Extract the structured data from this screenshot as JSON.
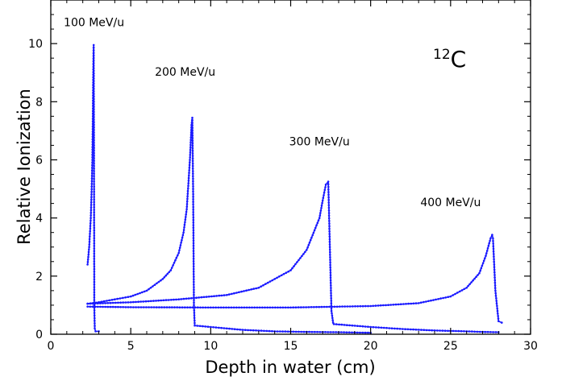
{
  "chart_data": {
    "type": "line",
    "title": "",
    "xlabel": "Depth in water (cm)",
    "ylabel": "Relative Ionization",
    "xlim": [
      0,
      30
    ],
    "ylim": [
      0,
      11.5
    ],
    "xticks": [
      0,
      5,
      10,
      15,
      20,
      25,
      30
    ],
    "yticks": [
      0,
      2,
      4,
      6,
      8,
      10
    ],
    "x_tick_labels": [
      "0",
      "5",
      "10",
      "15",
      "20",
      "25",
      "30"
    ],
    "y_tick_labels": [
      "0",
      "2",
      "4",
      "6",
      "8",
      "10"
    ],
    "grid": false,
    "color": "#1a1aff",
    "isotope": {
      "mass_number": "12",
      "symbol": "C"
    },
    "series": [
      {
        "name": "100 MeV/u",
        "x": [
          2.3,
          2.4,
          2.5,
          2.55,
          2.6,
          2.63,
          2.66,
          2.68,
          2.7,
          2.72,
          2.75,
          2.8,
          3.0
        ],
        "y": [
          2.4,
          3.0,
          4.0,
          4.9,
          6.0,
          7.5,
          9.2,
          9.95,
          6.5,
          1.0,
          0.2,
          0.1,
          0.1
        ]
      },
      {
        "name": "200 MeV/u",
        "x": [
          2.3,
          3,
          4,
          5,
          6,
          7,
          7.5,
          8.0,
          8.3,
          8.5,
          8.7,
          8.8,
          8.85,
          8.9,
          8.95,
          9.0,
          10,
          12,
          14,
          16,
          18,
          20
        ],
        "y": [
          1.05,
          1.1,
          1.2,
          1.3,
          1.5,
          1.9,
          2.2,
          2.8,
          3.5,
          4.3,
          6.0,
          7.2,
          7.45,
          5.0,
          1.0,
          0.3,
          0.25,
          0.15,
          0.1,
          0.08,
          0.07,
          0.05
        ]
      },
      {
        "name": "300 MeV/u",
        "x": [
          2.3,
          5,
          8,
          11,
          13,
          15,
          16,
          16.8,
          17.0,
          17.2,
          17.35,
          17.45,
          17.55,
          17.65,
          17.7,
          20,
          22,
          24,
          26,
          27,
          28
        ],
        "y": [
          1.05,
          1.1,
          1.2,
          1.35,
          1.6,
          2.2,
          2.9,
          4.0,
          4.6,
          5.15,
          5.25,
          3.0,
          0.8,
          0.4,
          0.35,
          0.25,
          0.18,
          0.13,
          0.1,
          0.08,
          0.07
        ]
      },
      {
        "name": "400 MeV/u",
        "x": [
          2.3,
          5,
          10,
          15,
          20,
          23,
          25,
          26,
          26.8,
          27.2,
          27.5,
          27.6,
          27.65,
          27.8,
          28.0,
          28.2
        ],
        "y": [
          0.95,
          0.93,
          0.92,
          0.92,
          0.97,
          1.07,
          1.3,
          1.6,
          2.1,
          2.7,
          3.3,
          3.42,
          3.3,
          1.5,
          0.45,
          0.4
        ]
      }
    ],
    "annotations": [
      {
        "text": "100 MeV/u",
        "x": 2.7,
        "y": 10.6
      },
      {
        "text": "200 MeV/u",
        "x": 8.4,
        "y": 8.9
      },
      {
        "text": "300 MeV/u",
        "x": 16.8,
        "y": 6.5
      },
      {
        "text": "400 MeV/u",
        "x": 25.0,
        "y": 4.4
      }
    ]
  }
}
